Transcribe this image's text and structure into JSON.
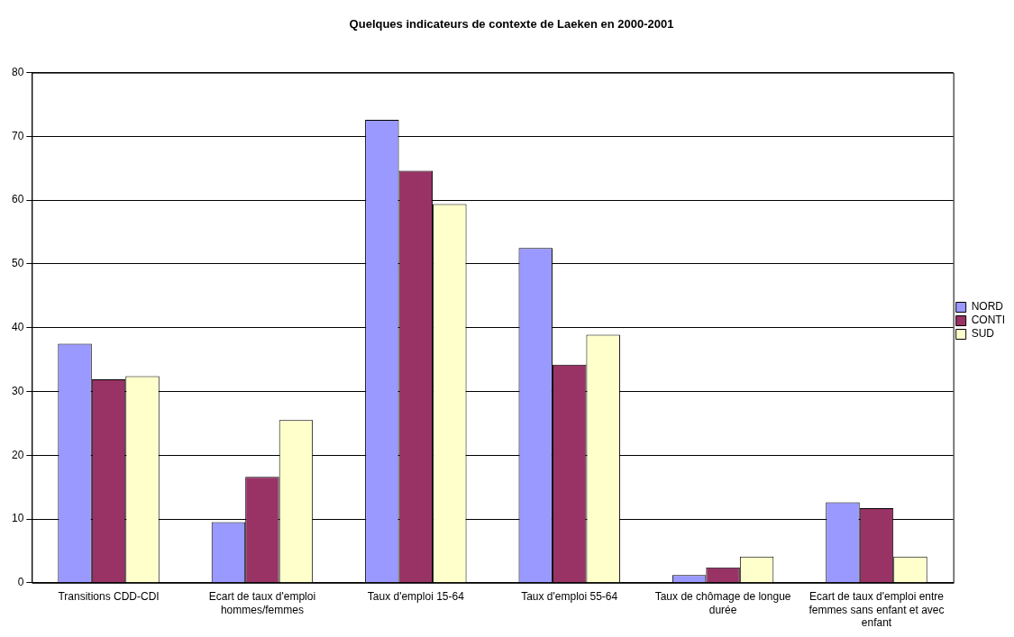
{
  "chart_data": {
    "type": "bar",
    "title": "Quelques indicateurs de contexte de Laeken en 2000-2001",
    "categories": [
      "Transitions CDD-CDI",
      "Ecart de taux d'emploi hommes/femmes",
      "Taux d'emploi 15-64",
      "Taux d'emploi 55-64",
      "Taux de chômage de longue durée",
      "Ecart de taux d'emploi entre femmes sans enfant et avec enfant"
    ],
    "series": [
      {
        "name": "NORD",
        "color": "#9999ff",
        "values": [
          37.5,
          9.5,
          72.6,
          52.5,
          1.2,
          12.6
        ]
      },
      {
        "name": "CONTI",
        "color": "#993366",
        "values": [
          31.9,
          16.6,
          64.6,
          34.2,
          2.4,
          11.7
        ]
      },
      {
        "name": "SUD",
        "color": "#ffffcc",
        "values": [
          32.4,
          25.5,
          59.4,
          38.9,
          4.1,
          4.1
        ]
      }
    ],
    "ylim": [
      0,
      80
    ],
    "yticks": [
      0,
      10,
      20,
      30,
      40,
      50,
      60,
      70,
      80
    ],
    "grid": "y",
    "legend": "right"
  }
}
